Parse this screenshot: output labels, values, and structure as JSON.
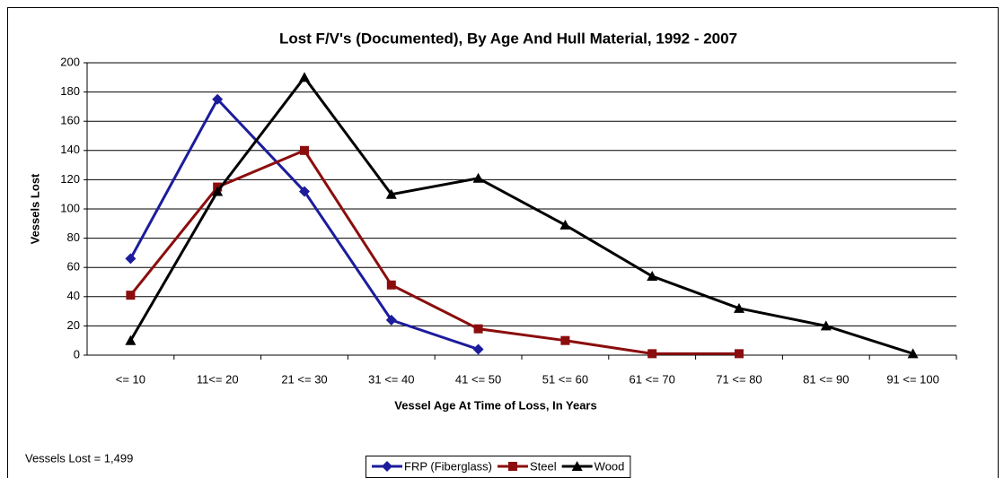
{
  "chart_data": {
    "type": "line",
    "title": "Lost F/V's (Documented), By Age And Hull Material, 1992 - 2007",
    "x_label": "Vessel Age At Time of Loss, In Years",
    "y_label": "Vessels Lost",
    "annotation": "Vessels Lost = 1,499",
    "categories": [
      "<= 10",
      "11<= 20",
      "21 <= 30",
      "31 <= 40",
      "41 <= 50",
      "51 <= 60",
      "61 <= 70",
      "71 <= 80",
      "81 <= 90",
      "91 <= 100"
    ],
    "series": [
      {
        "name": "FRP (Fiberglass)",
        "color": "#1c1c9c",
        "marker": "diamond",
        "values": [
          66,
          175,
          112,
          24,
          4,
          null,
          null,
          null,
          null,
          null
        ]
      },
      {
        "name": "Steel",
        "color": "#8b0d0d",
        "marker": "square",
        "values": [
          41,
          115,
          140,
          48,
          18,
          10,
          1,
          1,
          null,
          null
        ]
      },
      {
        "name": "Wood",
        "color": "#000000",
        "marker": "triangle",
        "values": [
          10,
          112,
          190,
          110,
          121,
          89,
          54,
          32,
          20,
          1
        ]
      }
    ],
    "ylim": [
      0,
      200
    ],
    "yticks": [
      0,
      20,
      40,
      60,
      80,
      100,
      120,
      140,
      160,
      180,
      200
    ],
    "grid": true,
    "legend": "bottom"
  }
}
